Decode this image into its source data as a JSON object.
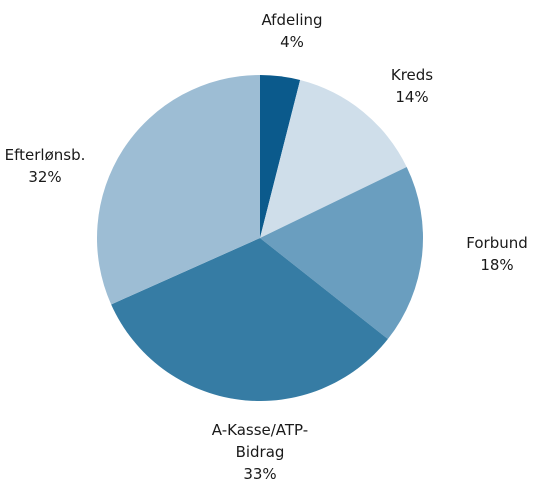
{
  "chart_data": {
    "type": "pie",
    "categories": [
      "Afdeling",
      "Kreds",
      "Forbund",
      "A-Kasse/ATP-Bidrag",
      "Efterlønsb."
    ],
    "values": [
      4,
      14,
      18,
      33,
      32
    ],
    "value_labels": [
      "4%",
      "14%",
      "18%",
      "33%",
      "32%"
    ],
    "colors": [
      "#0b5a8c",
      "#cfdeea",
      "#6a9ebf",
      "#367ca4",
      "#9dbdd4"
    ]
  }
}
